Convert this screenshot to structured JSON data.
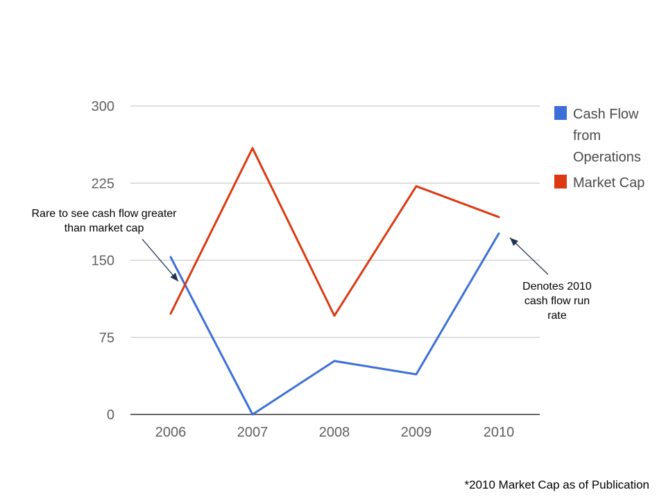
{
  "chart_data": {
    "type": "line",
    "categories": [
      "2006",
      "2007",
      "2008",
      "2009",
      "2010"
    ],
    "series": [
      {
        "name": "Cash Flow from Operations",
        "color": "#3c6fd8",
        "values": [
          153,
          0,
          52,
          39,
          176
        ]
      },
      {
        "name": "Market Cap",
        "color": "#dc3912",
        "values": [
          98,
          259,
          96,
          222,
          192
        ]
      }
    ],
    "ylim": [
      0,
      300
    ],
    "yticks": [
      "300",
      "225",
      "150",
      "75",
      "0"
    ],
    "grid": true,
    "legend_position": "right",
    "legend_lines": [
      [
        "Cash Flow",
        "from",
        "Operations"
      ],
      [
        "Market Cap"
      ]
    ]
  },
  "annotations": {
    "rare_lines": [
      "Rare to see cash flow greater",
      "than market cap"
    ],
    "denotes_lines": [
      "Denotes 2010",
      "cash flow run",
      "rate"
    ]
  },
  "footnote": "*2010 Market Cap as of Publication",
  "colors": {
    "grid": "#cccccc",
    "axis": "#333333",
    "arrow": "#1f3550"
  }
}
